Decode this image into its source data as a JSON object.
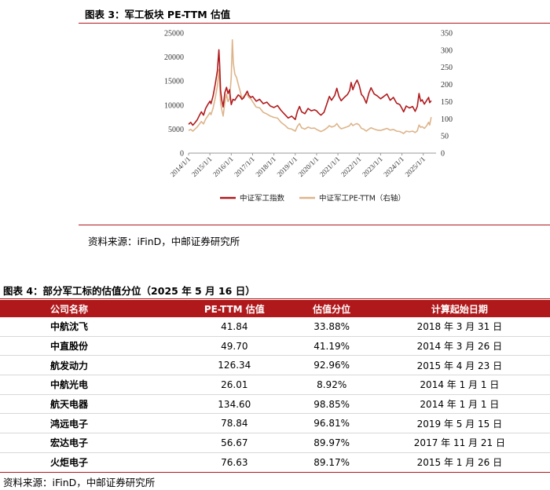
{
  "figure3": {
    "title": "图表 3：军工板块 PE-TTM 估值",
    "source": "资料来源：iFinD，中邮证券研究所"
  },
  "chart_data": {
    "type": "line",
    "x": [
      "2014/1/1",
      "2015/1/1",
      "2016/1/1",
      "2017/1/1",
      "2018/1/1",
      "2019/1/1",
      "2020/1/1",
      "2021/1/1",
      "2022/1/1",
      "2023/1/1",
      "2024/1/1",
      "2025/1/1"
    ],
    "y_left": {
      "ticks": [
        0,
        5000,
        10000,
        15000,
        20000,
        25000
      ],
      "ylim": [
        0,
        25000
      ]
    },
    "y_right": {
      "ticks": [
        0,
        50,
        100,
        150,
        200,
        250,
        300,
        350
      ],
      "ylim": [
        0,
        350
      ]
    },
    "xlim": [
      2014.0,
      2025.6
    ],
    "legend_position": "bottom",
    "colors": {
      "index": "#b0191c",
      "pe": "#ddb48a"
    },
    "series": [
      {
        "name": "中证军工指数",
        "axis": "left",
        "points": [
          [
            2014.0,
            6000
          ],
          [
            2014.1,
            6400
          ],
          [
            2014.2,
            5800
          ],
          [
            2014.3,
            6300
          ],
          [
            2014.4,
            6900
          ],
          [
            2014.5,
            7800
          ],
          [
            2014.6,
            8600
          ],
          [
            2014.7,
            7900
          ],
          [
            2014.8,
            9300
          ],
          [
            2014.9,
            10100
          ],
          [
            2015.0,
            10800
          ],
          [
            2015.05,
            10300
          ],
          [
            2015.15,
            11900
          ],
          [
            2015.25,
            14300
          ],
          [
            2015.35,
            17200
          ],
          [
            2015.42,
            21500
          ],
          [
            2015.46,
            18200
          ],
          [
            2015.5,
            13100
          ],
          [
            2015.55,
            11200
          ],
          [
            2015.62,
            9600
          ],
          [
            2015.7,
            12600
          ],
          [
            2015.78,
            13700
          ],
          [
            2015.85,
            12400
          ],
          [
            2015.92,
            13200
          ],
          [
            2016.0,
            10100
          ],
          [
            2016.08,
            11200
          ],
          [
            2016.17,
            11000
          ],
          [
            2016.25,
            11600
          ],
          [
            2016.33,
            12100
          ],
          [
            2016.42,
            11800
          ],
          [
            2016.5,
            11200
          ],
          [
            2016.58,
            11500
          ],
          [
            2016.67,
            12200
          ],
          [
            2016.75,
            12900
          ],
          [
            2016.83,
            12000
          ],
          [
            2016.92,
            11600
          ],
          [
            2017.0,
            11800
          ],
          [
            2017.17,
            10800
          ],
          [
            2017.33,
            11200
          ],
          [
            2017.5,
            10300
          ],
          [
            2017.67,
            10600
          ],
          [
            2017.83,
            9800
          ],
          [
            2018.0,
            9500
          ],
          [
            2018.17,
            9900
          ],
          [
            2018.33,
            8900
          ],
          [
            2018.5,
            8100
          ],
          [
            2018.67,
            7300
          ],
          [
            2018.83,
            7700
          ],
          [
            2019.0,
            7000
          ],
          [
            2019.1,
            8700
          ],
          [
            2019.2,
            9700
          ],
          [
            2019.3,
            8600
          ],
          [
            2019.45,
            8200
          ],
          [
            2019.6,
            9300
          ],
          [
            2019.75,
            8800
          ],
          [
            2019.9,
            9000
          ],
          [
            2020.0,
            8800
          ],
          [
            2020.1,
            8300
          ],
          [
            2020.2,
            7900
          ],
          [
            2020.35,
            8500
          ],
          [
            2020.5,
            10500
          ],
          [
            2020.6,
            11800
          ],
          [
            2020.7,
            11000
          ],
          [
            2020.85,
            12000
          ],
          [
            2020.95,
            13500
          ],
          [
            2021.05,
            11800
          ],
          [
            2021.15,
            10900
          ],
          [
            2021.3,
            11600
          ],
          [
            2021.45,
            12200
          ],
          [
            2021.55,
            13000
          ],
          [
            2021.62,
            14700
          ],
          [
            2021.7,
            13200
          ],
          [
            2021.8,
            14400
          ],
          [
            2021.9,
            15200
          ],
          [
            2022.0,
            14100
          ],
          [
            2022.1,
            12200
          ],
          [
            2022.2,
            11700
          ],
          [
            2022.33,
            10400
          ],
          [
            2022.45,
            12500
          ],
          [
            2022.55,
            13600
          ],
          [
            2022.7,
            12300
          ],
          [
            2022.85,
            11900
          ],
          [
            2023.0,
            11300
          ],
          [
            2023.15,
            11800
          ],
          [
            2023.3,
            12300
          ],
          [
            2023.45,
            11000
          ],
          [
            2023.6,
            11600
          ],
          [
            2023.75,
            10400
          ],
          [
            2023.9,
            10100
          ],
          [
            2024.0,
            9300
          ],
          [
            2024.08,
            8600
          ],
          [
            2024.2,
            9800
          ],
          [
            2024.35,
            9400
          ],
          [
            2024.5,
            9700
          ],
          [
            2024.62,
            8700
          ],
          [
            2024.72,
            9700
          ],
          [
            2024.8,
            12400
          ],
          [
            2024.88,
            10800
          ],
          [
            2024.95,
            11100
          ],
          [
            2025.05,
            10200
          ],
          [
            2025.15,
            10900
          ],
          [
            2025.25,
            11600
          ],
          [
            2025.3,
            10500
          ],
          [
            2025.37,
            10900
          ]
        ]
      },
      {
        "name": "中证军工PE-TTM（右轴）",
        "axis": "right",
        "points": [
          [
            2014.0,
            66
          ],
          [
            2014.1,
            69
          ],
          [
            2014.2,
            64
          ],
          [
            2014.3,
            70
          ],
          [
            2014.4,
            76
          ],
          [
            2014.5,
            84
          ],
          [
            2014.6,
            92
          ],
          [
            2014.7,
            85
          ],
          [
            2014.8,
            99
          ],
          [
            2014.9,
            108
          ],
          [
            2015.0,
            118
          ],
          [
            2015.05,
            112
          ],
          [
            2015.15,
            131
          ],
          [
            2015.25,
            160
          ],
          [
            2015.35,
            196
          ],
          [
            2015.42,
            244
          ],
          [
            2015.46,
            205
          ],
          [
            2015.5,
            148
          ],
          [
            2015.55,
            128
          ],
          [
            2015.62,
            108
          ],
          [
            2015.7,
            148
          ],
          [
            2015.78,
            172
          ],
          [
            2015.85,
            150
          ],
          [
            2015.92,
            158
          ],
          [
            2016.0,
            220
          ],
          [
            2016.05,
            330
          ],
          [
            2016.1,
            262
          ],
          [
            2016.17,
            230
          ],
          [
            2016.25,
            220
          ],
          [
            2016.33,
            200
          ],
          [
            2016.42,
            180
          ],
          [
            2016.5,
            160
          ],
          [
            2016.58,
            165
          ],
          [
            2016.67,
            172
          ],
          [
            2016.75,
            170
          ],
          [
            2016.83,
            162
          ],
          [
            2016.92,
            158
          ],
          [
            2017.0,
            150
          ],
          [
            2017.17,
            134
          ],
          [
            2017.33,
            132
          ],
          [
            2017.5,
            119
          ],
          [
            2017.67,
            114
          ],
          [
            2017.83,
            108
          ],
          [
            2018.0,
            104
          ],
          [
            2018.17,
            102
          ],
          [
            2018.33,
            90
          ],
          [
            2018.5,
            82
          ],
          [
            2018.67,
            72
          ],
          [
            2018.83,
            70
          ],
          [
            2019.0,
            64
          ],
          [
            2019.1,
            78
          ],
          [
            2019.2,
            86
          ],
          [
            2019.3,
            74
          ],
          [
            2019.45,
            70
          ],
          [
            2019.6,
            76
          ],
          [
            2019.75,
            72
          ],
          [
            2019.9,
            73
          ],
          [
            2020.0,
            69
          ],
          [
            2020.1,
            66
          ],
          [
            2020.2,
            63
          ],
          [
            2020.35,
            67
          ],
          [
            2020.5,
            74
          ],
          [
            2020.6,
            80
          ],
          [
            2020.7,
            76
          ],
          [
            2020.85,
            79
          ],
          [
            2020.95,
            86
          ],
          [
            2021.05,
            77
          ],
          [
            2021.15,
            71
          ],
          [
            2021.3,
            74
          ],
          [
            2021.45,
            77
          ],
          [
            2021.55,
            80
          ],
          [
            2021.62,
            87
          ],
          [
            2021.7,
            80
          ],
          [
            2021.8,
            84
          ],
          [
            2021.9,
            86
          ],
          [
            2022.0,
            82
          ],
          [
            2022.1,
            72
          ],
          [
            2022.2,
            70
          ],
          [
            2022.33,
            64
          ],
          [
            2022.45,
            70
          ],
          [
            2022.55,
            74
          ],
          [
            2022.7,
            70
          ],
          [
            2022.85,
            67
          ],
          [
            2023.0,
            66
          ],
          [
            2023.15,
            69
          ],
          [
            2023.3,
            72
          ],
          [
            2023.45,
            67
          ],
          [
            2023.6,
            69
          ],
          [
            2023.75,
            64
          ],
          [
            2023.9,
            63
          ],
          [
            2024.0,
            60
          ],
          [
            2024.08,
            57
          ],
          [
            2024.2,
            64
          ],
          [
            2024.35,
            62
          ],
          [
            2024.5,
            64
          ],
          [
            2024.62,
            60
          ],
          [
            2024.72,
            65
          ],
          [
            2024.8,
            82
          ],
          [
            2024.88,
            75
          ],
          [
            2024.95,
            77
          ],
          [
            2025.05,
            72
          ],
          [
            2025.15,
            79
          ],
          [
            2025.25,
            90
          ],
          [
            2025.3,
            82
          ],
          [
            2025.37,
            105
          ]
        ]
      }
    ]
  },
  "table": {
    "title": "图表 4：部分军工标的估值分位（2025 年 5 月 16 日）",
    "headers": [
      "公司名称",
      "PE-TTM 估值",
      "估值分位",
      "计算起始日期"
    ],
    "rows": [
      [
        "中航沈飞",
        "41.84",
        "33.88%",
        "2018 年 3 月 31 日"
      ],
      [
        "中直股份",
        "49.70",
        "41.19%",
        "2014 年 3 月 26 日"
      ],
      [
        "航发动力",
        "126.34",
        "92.96%",
        "2015 年 4 月 23 日"
      ],
      [
        "中航光电",
        "26.01",
        "8.92%",
        "2014 年 1 月 1 日"
      ],
      [
        "航天电器",
        "134.60",
        "98.85%",
        "2014 年 1 月 1 日"
      ],
      [
        "鸿远电子",
        "78.84",
        "96.81%",
        "2019 年 5 月 15 日"
      ],
      [
        "宏达电子",
        "56.67",
        "89.97%",
        "2017 年 11 月 21 日"
      ],
      [
        "火炬电子",
        "76.63",
        "89.17%",
        "2015 年 1 月 26 日"
      ]
    ],
    "source": "资料来源：iFinD，中邮证券研究所"
  }
}
